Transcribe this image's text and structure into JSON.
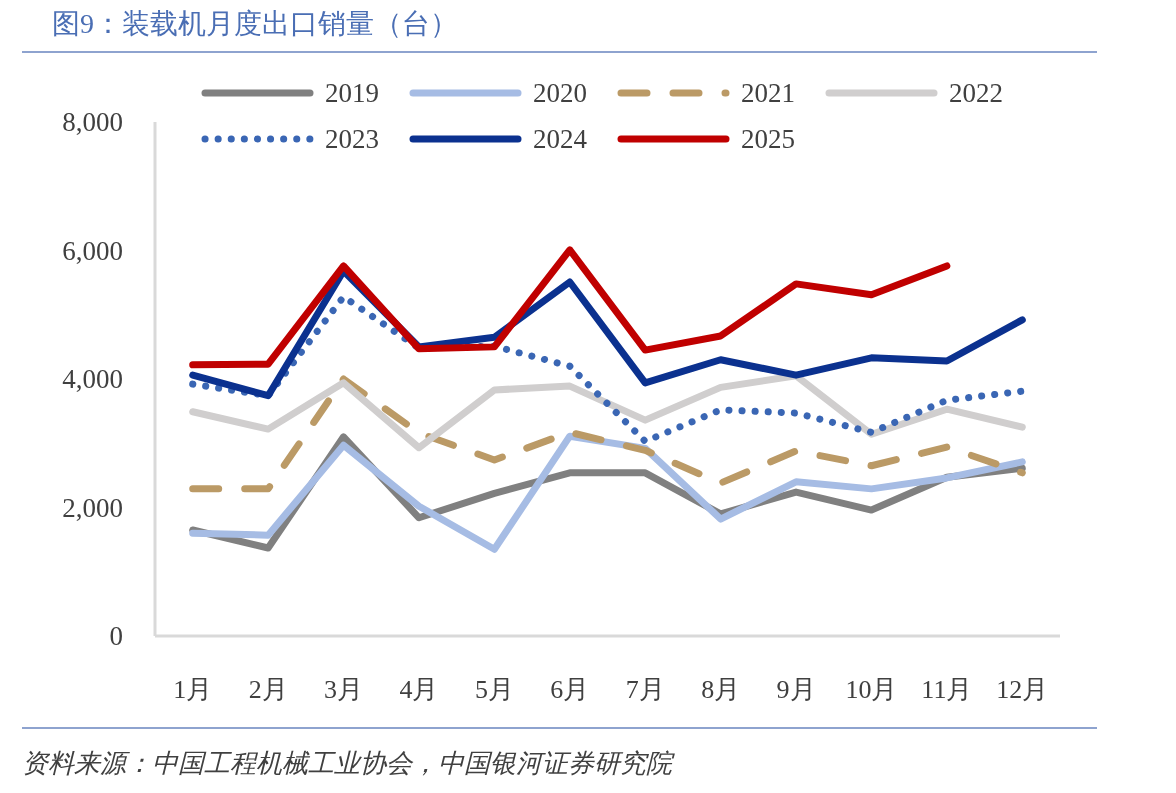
{
  "chart_data": {
    "type": "line",
    "title": "图9：装载机月度出口销量（台）",
    "annotations": [
      "资料来源：中国工程机械工业协会，中国银河证券研究院"
    ],
    "categories": [
      "1月",
      "2月",
      "3月",
      "4月",
      "5月",
      "6月",
      "7月",
      "8月",
      "9月",
      "10月",
      "11月",
      "12月"
    ],
    "ylim": [
      0,
      8000
    ],
    "yticks": [
      0,
      {
        "value": 2000,
        "label": "2,000"
      },
      {
        "value": 4000,
        "label": "4,000"
      },
      {
        "value": 6000,
        "label": "6,000"
      },
      {
        "value": 8000,
        "label": "8,000"
      }
    ],
    "grid": false,
    "legend": "top",
    "line_style": "solid",
    "series": [
      {
        "name": "2019",
        "color": "#808080",
        "values": [
          1650,
          1370,
          3100,
          1840,
          2220,
          2540,
          2540,
          1900,
          2240,
          1960,
          2470,
          2610
        ]
      },
      {
        "name": "2020",
        "color": "#a6bce4",
        "values": [
          1600,
          1570,
          2970,
          2020,
          1350,
          3110,
          2920,
          1820,
          2400,
          2290,
          2460,
          2710
        ]
      },
      {
        "name": "2021",
        "color": "#bb9a66",
        "line_style": "dashed",
        "values": [
          2290,
          2290,
          4000,
          3160,
          2740,
          3170,
          2890,
          2380,
          2880,
          2650,
          2940,
          2540
        ]
      },
      {
        "name": "2022",
        "color": "#d0cece",
        "values": [
          3490,
          3220,
          3940,
          2930,
          3830,
          3890,
          3360,
          3870,
          4050,
          3140,
          3530,
          3250
        ]
      },
      {
        "name": "2023",
        "color": "#3a66b4",
        "line_style": "dotted",
        "values": [
          3920,
          3740,
          5280,
          4480,
          4510,
          4200,
          3030,
          3520,
          3470,
          3170,
          3670,
          3810
        ]
      },
      {
        "name": "2024",
        "color": "#0b318f",
        "values": [
          4060,
          3740,
          5680,
          4500,
          4650,
          5510,
          3940,
          4300,
          4060,
          4330,
          4280,
          4920
        ]
      },
      {
        "name": "2025",
        "color": "#c00000",
        "values": [
          4220,
          4230,
          5760,
          4470,
          4500,
          6010,
          4450,
          4670,
          5480,
          5310,
          5760,
          null
        ]
      }
    ]
  }
}
